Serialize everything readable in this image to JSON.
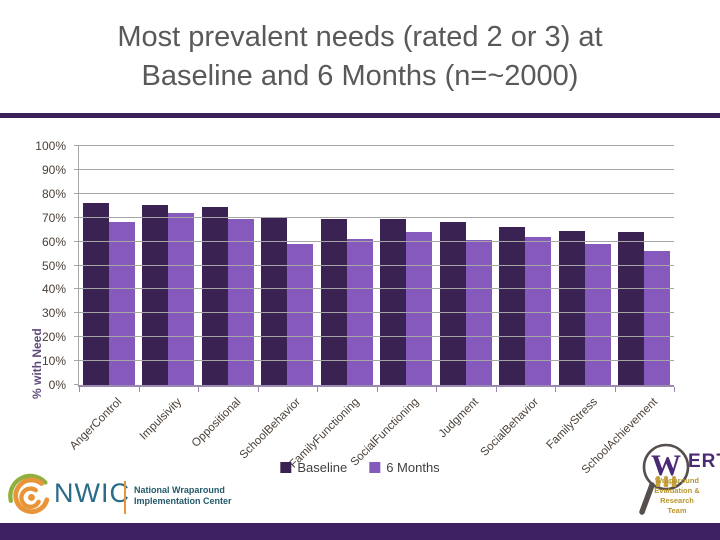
{
  "slide": {
    "title_line1": "Most prevalent needs (rated 2 or 3) at",
    "title_line2": "Baseline and 6 Months (n=~2000)"
  },
  "chart_data": {
    "type": "bar",
    "title": "",
    "ylabel": "% with Need",
    "xlabel": "",
    "ylim": [
      0,
      100
    ],
    "ytick_step": 10,
    "ytick_labels": [
      "0%",
      "10%",
      "20%",
      "30%",
      "40%",
      "50%",
      "60%",
      "70%",
      "80%",
      "90%",
      "100%"
    ],
    "grid": true,
    "legend_position": "bottom",
    "categories": [
      "AngerControl",
      "Impulsivity",
      "Oppositional",
      "SchoolBehavior",
      "FamilyFunctioning",
      "SocialFunctioning",
      "Judgment",
      "SocialBehavior",
      "FamilyStress",
      "SchoolAchievement"
    ],
    "series": [
      {
        "name": "Baseline",
        "color": "#3a2352",
        "values": [
          76,
          75.5,
          74.5,
          70,
          69.5,
          69.5,
          68,
          66,
          64.5,
          64
        ]
      },
      {
        "name": "6 Months",
        "color": "#8659bd",
        "values": [
          68,
          72,
          69.5,
          59,
          61,
          64,
          60.5,
          62,
          59,
          56
        ]
      }
    ]
  },
  "logos": {
    "nwic": {
      "acronym": "NWIC",
      "name_line1": "National Wraparound",
      "name_line2": "Implementation Center"
    },
    "wert": {
      "magnifier_letter": "W",
      "suffix": "ERT",
      "team_line1": "Wraparound",
      "team_line2": "Evaluation &",
      "team_line3": "Research",
      "team_line4": "Team"
    }
  },
  "colors": {
    "baseline_bar": "#3a2352",
    "six_months_bar": "#8659bd",
    "title_text": "#595959",
    "accent_rule": "#3a2258",
    "footer_bar": "#3e2160",
    "gridline": "#a6a6a6",
    "axis_text": "#4a4038",
    "y_axis_title_text": "#604a7b",
    "nwic_teal": "#2a6b88",
    "nwic_orange": "#e8953a",
    "nwic_green": "#8faf3e",
    "wert_purple": "#4a2a74",
    "wert_gold": "#b8952e"
  }
}
